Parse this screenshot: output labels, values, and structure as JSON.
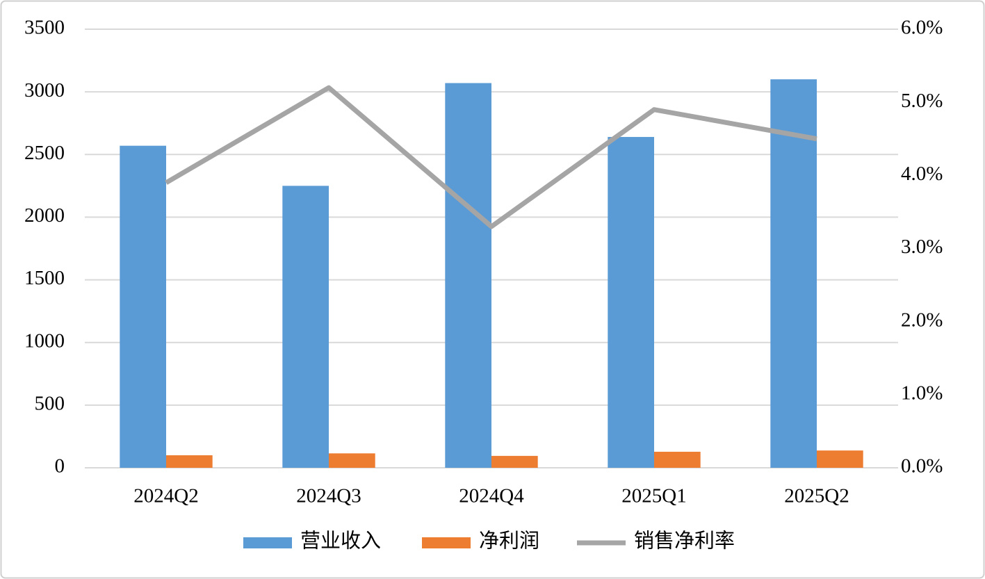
{
  "chart_data": {
    "type": "bar",
    "categories": [
      "2024Q2",
      "2024Q3",
      "2024Q4",
      "2025Q1",
      "2025Q2"
    ],
    "series": [
      {
        "name": "营业收入",
        "type": "bar",
        "color": "#5b9bd5",
        "values": [
          2570,
          2250,
          3070,
          2640,
          3100
        ]
      },
      {
        "name": "净利润",
        "type": "bar",
        "color": "#ed7d31",
        "values": [
          100,
          115,
          95,
          128,
          138
        ]
      },
      {
        "name": "销售净利率",
        "type": "line",
        "axis": "y2",
        "color": "#a5a5a5",
        "values": [
          3.9,
          5.2,
          3.3,
          4.9,
          4.5
        ]
      }
    ],
    "ylim": [
      0,
      3500
    ],
    "yticks": [
      0,
      500,
      1000,
      1500,
      2000,
      2500,
      3000,
      3500
    ],
    "y2lim": [
      0,
      6
    ],
    "y2ticks": [
      {
        "value": 0,
        "label": "0.0%"
      },
      {
        "value": 1,
        "label": "1.0%"
      },
      {
        "value": 2,
        "label": "2.0%"
      },
      {
        "value": 3,
        "label": "3.0%"
      },
      {
        "value": 4,
        "label": "4.0%"
      },
      {
        "value": 5,
        "label": "5.0%"
      },
      {
        "value": 6,
        "label": "6.0%"
      }
    ],
    "grid": true,
    "legend": "bottom"
  }
}
